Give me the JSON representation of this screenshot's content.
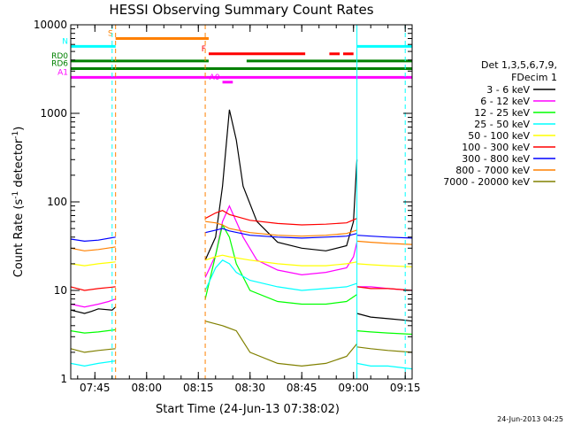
{
  "chart_data": {
    "type": "line",
    "title": "HESSI Observing Summary Count Rates",
    "xlabel": "Start Time (24-Jun-13 07:38:02)",
    "ylabel_main": "Count Rate (s",
    "ylabel_sup1": "-1",
    "ylabel_mid": " detector",
    "ylabel_sup2": "-1",
    "ylabel_end": ")",
    "y_scale": "log",
    "ylim": [
      1,
      10000
    ],
    "xlim": [
      "07:38",
      "09:17"
    ],
    "x_ticks": [
      "07:45",
      "08:00",
      "08:15",
      "08:30",
      "08:45",
      "09:00",
      "09:15"
    ],
    "y_ticks": [
      "1",
      "10",
      "100",
      "1000",
      "10000"
    ],
    "footer_date": "24-Jun-2013 04:25",
    "legend_placement": "right",
    "legend_title_1": "Det 1,3,5,6,7,9,",
    "legend_title_2": "FDecim 1",
    "series": [
      {
        "name": "3 - 6 keV",
        "color": "#000000",
        "segments": [
          {
            "t": [
              "07:38",
              "07:42",
              "07:44",
              "07:46",
              "07:50",
              "07:51"
            ],
            "v": [
              6,
              5.5,
              5.8,
              6.2,
              6,
              6.5
            ]
          },
          {
            "t": [
              "08:17",
              "08:20",
              "08:22",
              "08:24",
              "08:26",
              "08:28",
              "08:32",
              "08:38",
              "08:45",
              "08:52",
              "08:58",
              "09:00",
              "09:01"
            ],
            "v": [
              22,
              40,
              150,
              1100,
              500,
              150,
              60,
              35,
              30,
              28,
              32,
              60,
              300
            ]
          },
          {
            "t": [
              "09:01",
              "09:05",
              "09:10",
              "09:15",
              "09:17"
            ],
            "v": [
              5.5,
              5,
              4.8,
              4.6,
              4.5
            ]
          }
        ]
      },
      {
        "name": "6 - 12 keV",
        "color": "#ff00ff",
        "segments": [
          {
            "t": [
              "07:38",
              "07:42",
              "07:46",
              "07:49",
              "07:51"
            ],
            "v": [
              7,
              6.5,
              7,
              7.5,
              8
            ]
          },
          {
            "t": [
              "08:17",
              "08:20",
              "08:22",
              "08:24",
              "08:26",
              "08:28",
              "08:32",
              "08:38",
              "08:45",
              "08:52",
              "08:58",
              "09:00",
              "09:01"
            ],
            "v": [
              14,
              25,
              60,
              90,
              60,
              40,
              22,
              17,
              15,
              16,
              18,
              24,
              35
            ]
          },
          {
            "t": [
              "09:01",
              "09:05",
              "09:10",
              "09:17"
            ],
            "v": [
              11,
              11,
              10.5,
              10
            ]
          }
        ]
      },
      {
        "name": "12 - 25 keV",
        "color": "#00ff00",
        "segments": [
          {
            "t": [
              "07:38",
              "07:42",
              "07:46",
              "07:51"
            ],
            "v": [
              3.5,
              3.3,
              3.4,
              3.6
            ]
          },
          {
            "t": [
              "08:17",
              "08:20",
              "08:22",
              "08:24",
              "08:26",
              "08:30",
              "08:38",
              "08:45",
              "08:52",
              "08:58",
              "09:01"
            ],
            "v": [
              8,
              25,
              55,
              40,
              20,
              10,
              7.5,
              7,
              7,
              7.5,
              9
            ]
          },
          {
            "t": [
              "09:01",
              "09:05",
              "09:10",
              "09:17"
            ],
            "v": [
              3.5,
              3.4,
              3.3,
              3.2
            ]
          }
        ]
      },
      {
        "name": "25 - 50 keV",
        "color": "#00ffff",
        "segments": [
          {
            "t": [
              "07:38",
              "07:42",
              "07:46",
              "07:51"
            ],
            "v": [
              1.5,
              1.4,
              1.5,
              1.6
            ]
          },
          {
            "t": [
              "08:17",
              "08:20",
              "08:22",
              "08:24",
              "08:26",
              "08:30",
              "08:38",
              "08:45",
              "08:52",
              "08:58",
              "09:01"
            ],
            "v": [
              10,
              18,
              22,
              20,
              16,
              13,
              11,
              10,
              10.5,
              11,
              12
            ]
          },
          {
            "t": [
              "09:01",
              "09:05",
              "09:10",
              "09:17"
            ],
            "v": [
              1.5,
              1.4,
              1.4,
              1.3
            ]
          }
        ]
      },
      {
        "name": "50 - 100 keV",
        "color": "#ffff00",
        "segments": [
          {
            "t": [
              "07:38",
              "07:42",
              "07:46",
              "07:51"
            ],
            "v": [
              20,
              19,
              20,
              21
            ]
          },
          {
            "t": [
              "08:17",
              "08:20",
              "08:22",
              "08:24",
              "08:30",
              "08:38",
              "08:45",
              "08:52",
              "08:58",
              "09:01"
            ],
            "v": [
              22,
              24,
              25,
              24,
              22,
              20,
              19,
              19,
              20,
              21
            ]
          },
          {
            "t": [
              "09:01",
              "09:05",
              "09:10",
              "09:17"
            ],
            "v": [
              20,
              19.5,
              19,
              18.5
            ]
          }
        ]
      },
      {
        "name": "100 - 300 keV",
        "color": "#ff0000",
        "segments": [
          {
            "t": [
              "07:38",
              "07:42",
              "07:46",
              "07:51"
            ],
            "v": [
              11,
              10,
              10.5,
              11
            ]
          },
          {
            "t": [
              "08:17",
              "08:20",
              "08:22",
              "08:24",
              "08:30",
              "08:38",
              "08:45",
              "08:52",
              "08:58",
              "09:01"
            ],
            "v": [
              65,
              75,
              80,
              72,
              62,
              57,
              55,
              56,
              58,
              65
            ]
          },
          {
            "t": [
              "09:01",
              "09:05",
              "09:10",
              "09:17"
            ],
            "v": [
              11,
              10.5,
              10.5,
              10
            ]
          }
        ]
      },
      {
        "name": "300 - 800 keV",
        "color": "#0000ff",
        "segments": [
          {
            "t": [
              "07:38",
              "07:42",
              "07:46",
              "07:51"
            ],
            "v": [
              38,
              36,
              37,
              40
            ]
          },
          {
            "t": [
              "08:17",
              "08:20",
              "08:22",
              "08:24",
              "08:30",
              "08:38",
              "08:45",
              "08:52",
              "08:58",
              "09:01"
            ],
            "v": [
              45,
              48,
              50,
              47,
              42,
              40,
              39,
              40,
              41,
              44
            ]
          },
          {
            "t": [
              "09:01",
              "09:05",
              "09:10",
              "09:17"
            ],
            "v": [
              42,
              41,
              40,
              39
            ]
          }
        ]
      },
      {
        "name": "800 - 7000 keV",
        "color": "#ff8000",
        "segments": [
          {
            "t": [
              "07:38",
              "07:42",
              "07:46",
              "07:51"
            ],
            "v": [
              30,
              28,
              29,
              31
            ]
          },
          {
            "t": [
              "08:17",
              "08:20",
              "08:22",
              "08:24",
              "08:30",
              "08:38",
              "08:45",
              "08:52",
              "08:58",
              "09:01"
            ],
            "v": [
              60,
              58,
              55,
              50,
              45,
              42,
              41,
              42,
              44,
              48
            ]
          },
          {
            "t": [
              "09:01",
              "09:05",
              "09:10",
              "09:17"
            ],
            "v": [
              36,
              35,
              34,
              33
            ]
          }
        ]
      },
      {
        "name": "7000 - 20000 keV",
        "color": "#808000",
        "segments": [
          {
            "t": [
              "07:38",
              "07:42",
              "07:46",
              "07:51"
            ],
            "v": [
              2.2,
              2.0,
              2.1,
              2.2
            ]
          },
          {
            "t": [
              "08:17",
              "08:22",
              "08:26",
              "08:30",
              "08:38",
              "08:45",
              "08:52",
              "08:58",
              "09:01"
            ],
            "v": [
              4.5,
              4,
              3.5,
              2,
              1.5,
              1.4,
              1.5,
              1.8,
              2.5
            ]
          },
          {
            "t": [
              "09:01",
              "09:05",
              "09:10",
              "09:17"
            ],
            "v": [
              2.3,
              2.2,
              2.1,
              2.0
            ]
          }
        ]
      }
    ],
    "flag_bars": [
      {
        "label": "S",
        "color": "#ff8000",
        "level": 7000,
        "segments": [
          [
            "07:51",
            "08:18"
          ]
        ]
      },
      {
        "label": "N",
        "color": "#00ffff",
        "level": 5700,
        "segments": [
          [
            "07:38",
            "07:51"
          ],
          [
            "09:01",
            "09:17"
          ]
        ]
      },
      {
        "label": "F",
        "color": "#ff0000",
        "level": 4700,
        "segments": [
          [
            "08:18",
            "08:46"
          ],
          [
            "08:53",
            "08:56"
          ],
          [
            "08:57",
            "09:00"
          ]
        ]
      },
      {
        "label": "RD0",
        "color": "#008000",
        "level": 3900,
        "segments": [
          [
            "07:38",
            "08:18"
          ],
          [
            "08:29",
            "09:17"
          ]
        ]
      },
      {
        "label": "RD6",
        "color": "#008000",
        "level": 3200,
        "segments": [
          [
            "07:38",
            "08:18"
          ],
          [
            "08:18",
            "09:17"
          ]
        ]
      },
      {
        "label": "A0",
        "color": "#ff00ff",
        "level": 2250,
        "segments": [
          [
            "08:22",
            "08:25"
          ]
        ]
      },
      {
        "label": "A1",
        "color": "#ff00ff",
        "level": 2550,
        "segments": [
          [
            "07:38",
            "09:17"
          ]
        ]
      }
    ],
    "vlines": [
      {
        "time": "07:38",
        "color": "#00ffff",
        "style": "solid"
      },
      {
        "time": "07:50",
        "color": "#00ffff",
        "style": "dashed"
      },
      {
        "time": "07:51",
        "color": "#ff8000",
        "style": "dashed"
      },
      {
        "time": "08:17",
        "color": "#ff8000",
        "style": "dashed"
      },
      {
        "time": "09:01",
        "color": "#00ffff",
        "style": "solid"
      },
      {
        "time": "09:15",
        "color": "#00ffff",
        "style": "dashed"
      }
    ]
  }
}
